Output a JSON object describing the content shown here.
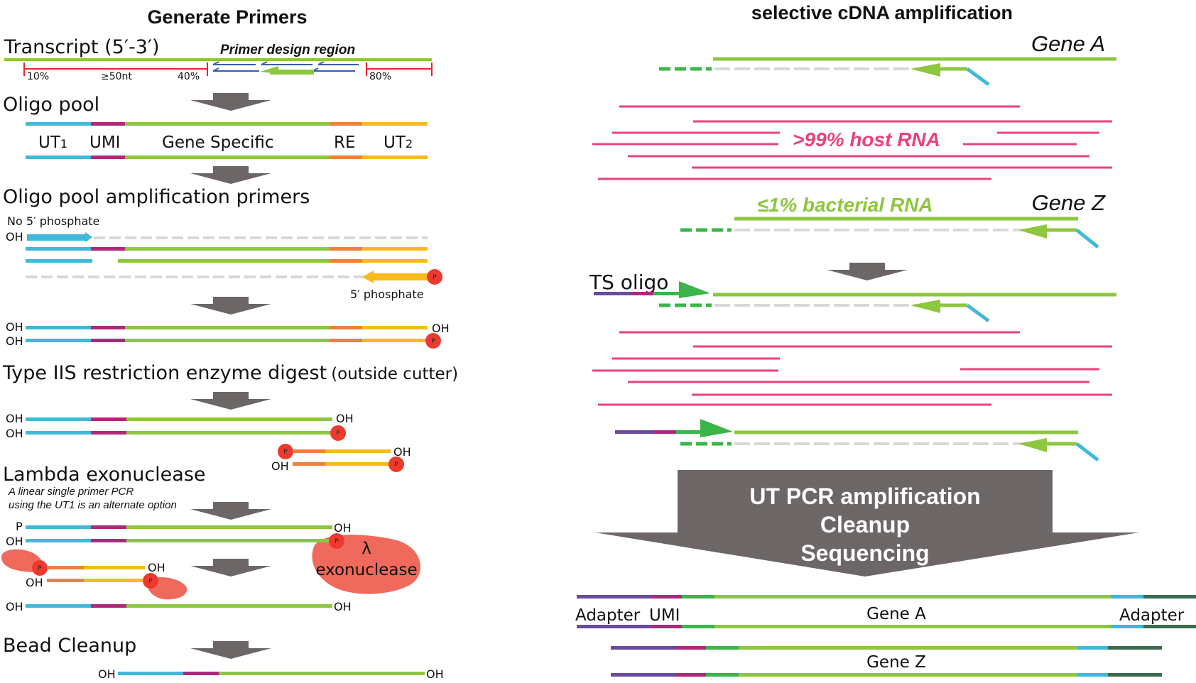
{
  "left": {
    "title": "Generate Primers",
    "transcript": {
      "label": "Transcript (5′-3′)",
      "region_label": "Primer design region",
      "p10": "10%",
      "p50nt": "≥50nt",
      "p40": "40%",
      "p80": "80%"
    },
    "oligo_pool": {
      "title": "Oligo pool",
      "ut1": "UT",
      "ut1_sub": "1",
      "umi": "UMI",
      "gene_specific": "Gene Specific",
      "re": "RE",
      "ut2": "UT",
      "ut2_sub": "2"
    },
    "amp_primers": {
      "title": "Oligo pool amplification primers",
      "no_phosphate": "No 5′ phosphate",
      "phosphate": "5′ phosphate"
    },
    "digest": {
      "title": "Type IIS restriction enzyme digest",
      "note": "(outside cutter)"
    },
    "lambda": {
      "title": "Lambda exonuclease",
      "note_line1": "A linear single primer PCR",
      "note_line2": "using the UT1 is an alternate option",
      "lambda_symbol": "λ",
      "enzyme": "exonuclease"
    },
    "bead": {
      "title": "Bead Cleanup"
    },
    "oh": "OH",
    "p_letter": "P",
    "p_badge": "P"
  },
  "right": {
    "title": "selective cDNA amplification",
    "gene_a": "Gene A",
    "gene_z": "Gene Z",
    "host_rna": ">99% host RNA",
    "bacterial_rna": "≤1% bacterial RNA",
    "ts_oligo": "TS oligo",
    "steps": [
      "UT PCR amplification",
      "Cleanup",
      "Sequencing"
    ],
    "adapter_left": "Adapter",
    "umi": "UMI",
    "final_gene_a": "Gene A",
    "adapter_right": "Adapter",
    "final_gene_z": "Gene Z"
  },
  "colors": {
    "ut_blue": "#3fb8d9",
    "umi_magenta": "#b0277a",
    "gene_green": "#8dc63f",
    "dark_green": "#39b54a",
    "re_orange": "#f07f3a",
    "ut2_yellow": "#fbba1c",
    "host_pink": "#e8427a",
    "phosphate_red": "#ed3a2f",
    "enzyme_salmon": "#ef6a5c",
    "arrow_gray": "#6d6666",
    "adapter_purple": "#6a4a9c",
    "adapter_darkgreen": "#3a6b4f",
    "primer_navy": "#3a5ea8",
    "bracket_red": "#e8232e",
    "dashed_gray": "#d8d8d8"
  }
}
